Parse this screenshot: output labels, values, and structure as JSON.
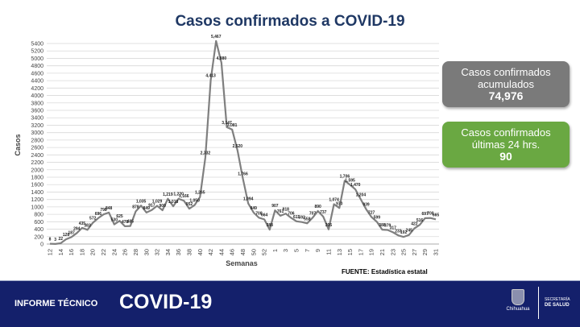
{
  "title": "Casos confirmados a COVID-19",
  "boxes": {
    "accum": {
      "label1": "Casos confirmados",
      "label2": "acumulados",
      "value": "74,976",
      "color": "#7a7a7a"
    },
    "last24": {
      "label1": "Casos confirmados",
      "label2": "últimas 24 hrs.",
      "value": "90",
      "color": "#6aa842"
    }
  },
  "source": "FUENTE: Estadística estatal",
  "footer": {
    "prefix": "INFORME TÉCNICO",
    "main": "COVID-19",
    "logo_text": "Chihuahua",
    "secretaria1": "SECRETARÍA",
    "secretaria2": "DE SALUD"
  },
  "chart_data": {
    "type": "line",
    "title": "Casos confirmados a COVID-19",
    "xlabel": "Semanas",
    "ylabel": "Casos",
    "ylim": [
      0,
      5400
    ],
    "yticks": [
      0,
      200,
      400,
      600,
      800,
      1000,
      1200,
      1400,
      1600,
      1800,
      2000,
      2200,
      2400,
      2600,
      2800,
      3000,
      3200,
      3400,
      3600,
      3800,
      4000,
      4200,
      4400,
      4600,
      4800,
      5000,
      5200,
      5400
    ],
    "grid": true,
    "line_color": "#7f7f7f",
    "x": [
      "12",
      "13",
      "14",
      "15",
      "16",
      "17",
      "18",
      "19",
      "20",
      "21",
      "22",
      "23",
      "24",
      "25",
      "26",
      "27",
      "28",
      "29",
      "30",
      "31",
      "32",
      "33",
      "34",
      "35",
      "36",
      "37",
      "38",
      "39",
      "40",
      "41",
      "42",
      "43",
      "44",
      "45",
      "46",
      "47",
      "48",
      "49",
      "50",
      "51",
      "52",
      "53",
      "1",
      "2",
      "3",
      "4",
      "5",
      "6",
      "7",
      "8",
      "9",
      "10",
      "11",
      "12",
      "13",
      "14",
      "15",
      "16",
      "17",
      "18",
      "19",
      "20",
      "21",
      "22",
      "23",
      "24",
      "25",
      "26",
      "27",
      "28",
      "29",
      "30",
      "31"
    ],
    "values": [
      8,
      3,
      22,
      128,
      187,
      294,
      435,
      383,
      572,
      696,
      798,
      848,
      530,
      625,
      478,
      485,
      878,
      1035,
      849,
      917,
      1029,
      909,
      1219,
      1018,
      1220,
      1166,
      952,
      1050,
      1265,
      2332,
      4413,
      5467,
      4880,
      3147,
      3081,
      2520,
      1766,
      1094,
      849,
      708,
      664,
      388,
      907,
      761,
      818,
      706,
      611,
      592,
      558,
      707,
      890,
      737,
      395,
      1074,
      970,
      1706,
      1595,
      1470,
      1204,
      939,
      727,
      599,
      388,
      379,
      317,
      233,
      192,
      245,
      422,
      516,
      697,
      700,
      665
    ]
  }
}
